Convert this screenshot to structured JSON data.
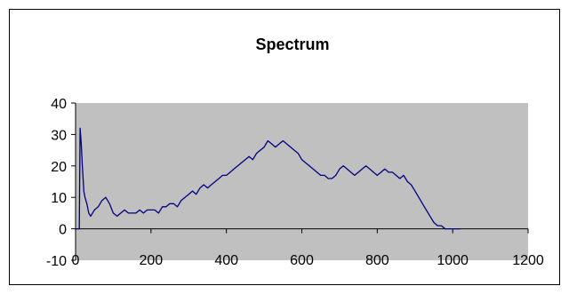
{
  "chart_data": {
    "type": "line",
    "title": "Spectrum",
    "xlabel": "",
    "ylabel": "",
    "xlim": [
      0,
      1200
    ],
    "ylim": [
      -10,
      40
    ],
    "x_ticks": [
      0,
      200,
      400,
      600,
      800,
      1000,
      1200
    ],
    "y_ticks": [
      -10,
      0,
      10,
      20,
      30,
      40
    ],
    "x_tick_labels": [
      "0",
      "200",
      "400",
      "600",
      "800",
      "1000",
      "1200"
    ],
    "y_tick_labels": [
      "-10",
      "0",
      "10",
      "20",
      "30",
      "40"
    ],
    "grid": false,
    "legend": "none",
    "plot_background": "#c0c0c0",
    "series": [
      {
        "color": "#000080",
        "x": [
          0,
          10,
          12,
          15,
          18,
          22,
          25,
          30,
          35,
          40,
          50,
          60,
          70,
          80,
          90,
          100,
          110,
          120,
          130,
          140,
          150,
          160,
          170,
          180,
          190,
          200,
          210,
          220,
          230,
          240,
          250,
          260,
          270,
          280,
          290,
          300,
          310,
          320,
          330,
          340,
          350,
          360,
          370,
          380,
          390,
          400,
          410,
          420,
          430,
          440,
          450,
          460,
          470,
          480,
          490,
          500,
          510,
          520,
          530,
          540,
          550,
          560,
          570,
          580,
          590,
          600,
          610,
          620,
          630,
          640,
          650,
          660,
          670,
          680,
          690,
          700,
          710,
          720,
          730,
          740,
          750,
          760,
          770,
          780,
          790,
          800,
          810,
          820,
          830,
          840,
          850,
          860,
          870,
          880,
          890,
          900,
          910,
          920,
          930,
          940,
          950,
          960,
          970,
          980,
          990,
          1000,
          1010,
          1020
        ],
        "y": [
          0,
          0,
          32,
          27,
          20,
          12,
          10,
          8,
          5,
          4,
          6,
          7,
          9,
          10,
          8,
          5,
          4,
          5,
          6,
          5,
          5,
          5,
          6,
          5,
          6,
          6,
          6,
          5,
          7,
          7,
          8,
          8,
          7,
          9,
          10,
          11,
          12,
          11,
          13,
          14,
          13,
          14,
          15,
          16,
          17,
          17,
          18,
          19,
          20,
          21,
          22,
          23,
          22,
          24,
          25,
          26,
          28,
          27,
          26,
          27,
          28,
          27,
          26,
          25,
          24,
          22,
          21,
          20,
          19,
          18,
          17,
          17,
          16,
          16,
          17,
          19,
          20,
          19,
          18,
          17,
          18,
          19,
          20,
          19,
          18,
          17,
          18,
          19,
          18,
          18,
          17,
          16,
          17,
          15,
          14,
          12,
          10,
          8,
          6,
          4,
          2,
          1,
          1,
          0,
          0,
          0,
          0,
          0
        ]
      }
    ]
  }
}
